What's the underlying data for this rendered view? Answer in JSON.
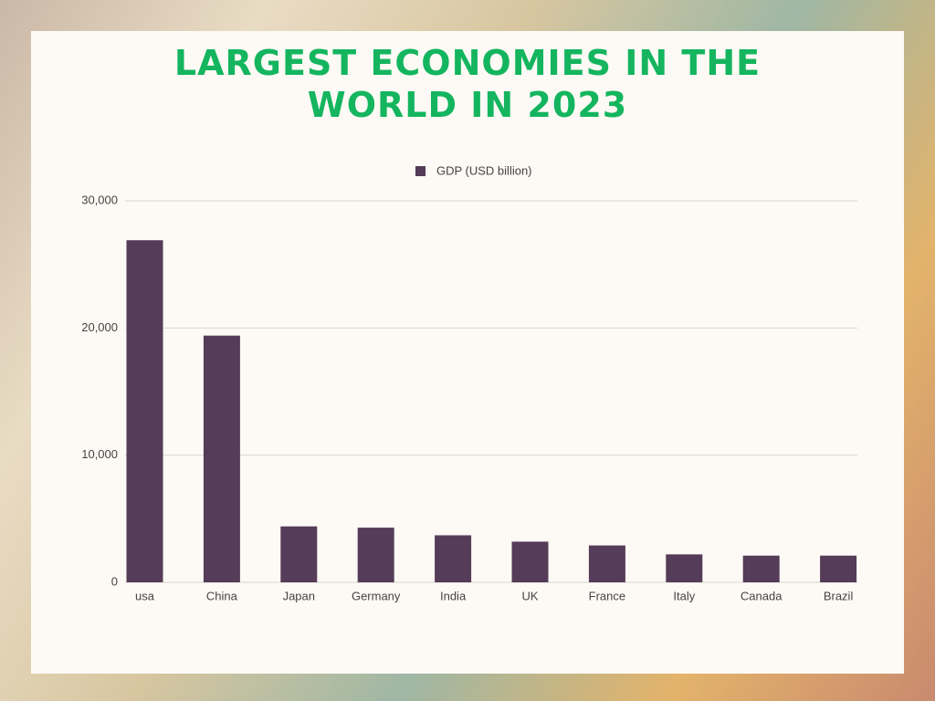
{
  "chart_data": {
    "type": "bar",
    "title": "LARGEST ECONOMIES IN THE WORLD IN 2023",
    "categories": [
      "usa",
      "China",
      "Japan",
      "Germany",
      "India",
      "UK",
      "France",
      "Italy",
      "Canada",
      "Brazil"
    ],
    "series": [
      {
        "name": "GDP (USD billion)",
        "color": "#553c58",
        "values": [
          26900,
          19400,
          4400,
          4300,
          3700,
          3200,
          2900,
          2200,
          2100,
          2100
        ]
      }
    ],
    "ylim": [
      0,
      30000
    ],
    "yticks": [
      0,
      {
        "value": 10000,
        "label": "10,000"
      },
      {
        "value": 20000,
        "label": "20,000"
      },
      {
        "value": 30000,
        "label": "30,000"
      }
    ],
    "grid": true,
    "legend": "top"
  }
}
